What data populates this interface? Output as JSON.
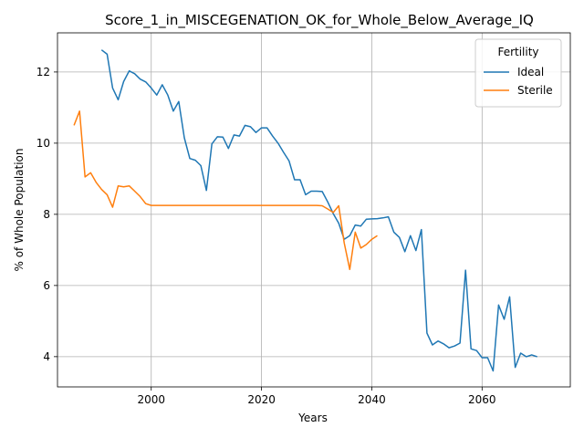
{
  "chart_data": {
    "type": "line",
    "title": "Score_1_in_MISCEGENATION_OK_for_Whole_Below_Average_IQ",
    "xlabel": "Years",
    "ylabel": "% of Whole Population",
    "xlim": [
      1983,
      2076
    ],
    "ylim": [
      3.15,
      13.1
    ],
    "xticks": [
      2000,
      2020,
      2040,
      2060
    ],
    "yticks": [
      4,
      6,
      8,
      10,
      12
    ],
    "grid": true,
    "legend": {
      "title": "Fertility",
      "position": "top-right"
    },
    "series": [
      {
        "name": "Ideal",
        "color": "#1f77b4",
        "points": [
          [
            1991,
            12.62
          ],
          [
            1992,
            12.5
          ],
          [
            1993,
            11.55
          ],
          [
            1994,
            11.22
          ],
          [
            1995,
            11.73
          ],
          [
            1996,
            12.03
          ],
          [
            1997,
            11.95
          ],
          [
            1998,
            11.8
          ],
          [
            1999,
            11.72
          ],
          [
            2000,
            11.55
          ],
          [
            2001,
            11.35
          ],
          [
            2002,
            11.64
          ],
          [
            2003,
            11.35
          ],
          [
            2004,
            10.9
          ],
          [
            2005,
            11.17
          ],
          [
            2006,
            10.15
          ],
          [
            2007,
            9.57
          ],
          [
            2008,
            9.52
          ],
          [
            2009,
            9.37
          ],
          [
            2010,
            8.67
          ],
          [
            2011,
            9.98
          ],
          [
            2012,
            10.18
          ],
          [
            2013,
            10.17
          ],
          [
            2014,
            9.85
          ],
          [
            2015,
            10.23
          ],
          [
            2016,
            10.2
          ],
          [
            2017,
            10.5
          ],
          [
            2018,
            10.46
          ],
          [
            2019,
            10.3
          ],
          [
            2020,
            10.43
          ],
          [
            2021,
            10.43
          ],
          [
            2022,
            10.2
          ],
          [
            2023,
            10.0
          ],
          [
            2024,
            9.74
          ],
          [
            2025,
            9.5
          ],
          [
            2026,
            8.97
          ],
          [
            2027,
            8.97
          ],
          [
            2028,
            8.55
          ],
          [
            2029,
            8.65
          ],
          [
            2030,
            8.65
          ],
          [
            2031,
            8.64
          ],
          [
            2032,
            8.35
          ],
          [
            2033,
            8.02
          ],
          [
            2034,
            7.75
          ],
          [
            2035,
            7.3
          ],
          [
            2036,
            7.4
          ],
          [
            2037,
            7.7
          ],
          [
            2038,
            7.67
          ],
          [
            2039,
            7.86
          ],
          [
            2040,
            7.87
          ],
          [
            2041,
            7.88
          ],
          [
            2042,
            7.9
          ],
          [
            2043,
            7.93
          ],
          [
            2044,
            7.5
          ],
          [
            2045,
            7.35
          ],
          [
            2046,
            6.95
          ],
          [
            2047,
            7.4
          ],
          [
            2048,
            6.98
          ],
          [
            2049,
            7.57
          ],
          [
            2050,
            4.66
          ],
          [
            2051,
            4.33
          ],
          [
            2052,
            4.44
          ],
          [
            2053,
            4.36
          ],
          [
            2054,
            4.25
          ],
          [
            2055,
            4.3
          ],
          [
            2056,
            4.38
          ],
          [
            2057,
            6.43
          ],
          [
            2058,
            4.22
          ],
          [
            2059,
            4.17
          ],
          [
            2060,
            3.97
          ],
          [
            2061,
            3.97
          ],
          [
            2062,
            3.6
          ],
          [
            2063,
            5.45
          ],
          [
            2064,
            5.05
          ],
          [
            2065,
            5.68
          ],
          [
            2066,
            3.7
          ],
          [
            2067,
            4.1
          ],
          [
            2068,
            4.0
          ],
          [
            2069,
            4.05
          ],
          [
            2070,
            4.0
          ]
        ]
      },
      {
        "name": "Sterile",
        "color": "#ff7f0e",
        "points": [
          [
            1986,
            10.5
          ],
          [
            1987,
            10.9
          ],
          [
            1988,
            9.05
          ],
          [
            1989,
            9.17
          ],
          [
            1990,
            8.9
          ],
          [
            1991,
            8.7
          ],
          [
            1992,
            8.55
          ],
          [
            1993,
            8.2
          ],
          [
            1994,
            8.8
          ],
          [
            1995,
            8.77
          ],
          [
            1996,
            8.8
          ],
          [
            1997,
            8.65
          ],
          [
            1998,
            8.5
          ],
          [
            1999,
            8.3
          ],
          [
            2000,
            8.25
          ],
          [
            2005,
            8.25
          ],
          [
            2010,
            8.25
          ],
          [
            2015,
            8.25
          ],
          [
            2020,
            8.25
          ],
          [
            2025,
            8.25
          ],
          [
            2030,
            8.25
          ],
          [
            2031,
            8.24
          ],
          [
            2032,
            8.15
          ],
          [
            2033,
            8.05
          ],
          [
            2034,
            8.24
          ],
          [
            2035,
            7.2
          ],
          [
            2036,
            6.45
          ],
          [
            2037,
            7.5
          ],
          [
            2038,
            7.05
          ],
          [
            2039,
            7.15
          ],
          [
            2040,
            7.3
          ],
          [
            2041,
            7.4
          ]
        ]
      }
    ]
  }
}
